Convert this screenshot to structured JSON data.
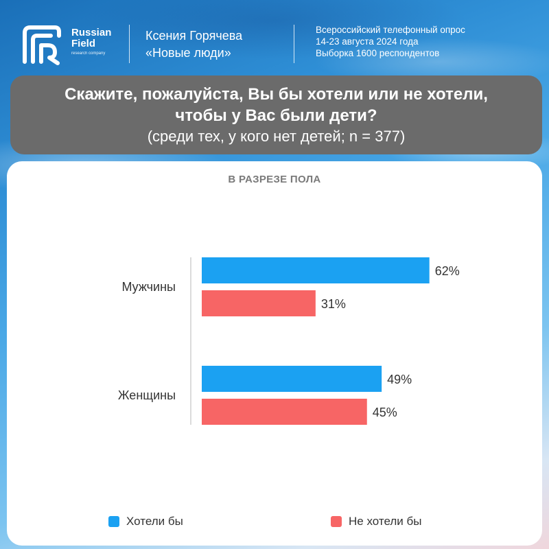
{
  "header": {
    "logo": {
      "line1": "Russian",
      "line2": "Field",
      "line3": "research company"
    },
    "author": {
      "name": "Ксения Горячева",
      "project": "«Новые люди»"
    },
    "survey": {
      "line1": "Всероссийский телефонный опрос",
      "line2": "14-23 августа 2024 года",
      "line3": "Выборка 1600 респондентов"
    }
  },
  "question": {
    "title": "Скажите, пожалуйста, Вы бы хотели или не хотели, чтобы у Вас были дети?",
    "subtitle": "(среди тех, у кого нет детей; n = 377)"
  },
  "colors": {
    "series1": "#1ba1f2",
    "series2": "#f76565",
    "question_bg": "#6b6b6b"
  },
  "chart_data": {
    "type": "bar",
    "orientation": "horizontal",
    "title": "В РАЗРЕЗЕ ПОЛА",
    "categories": [
      "Мужчины",
      "Женщины"
    ],
    "series": [
      {
        "name": "Хотели бы",
        "values": [
          62,
          49
        ],
        "labels": [
          "62%",
          "49%"
        ],
        "color": "#1ba1f2"
      },
      {
        "name": "Не хотели бы",
        "values": [
          31,
          45
        ],
        "labels": [
          "31%",
          "45%"
        ],
        "color": "#f76565"
      }
    ],
    "xlim": [
      0,
      100
    ],
    "grid": false,
    "legend_position": "bottom"
  }
}
